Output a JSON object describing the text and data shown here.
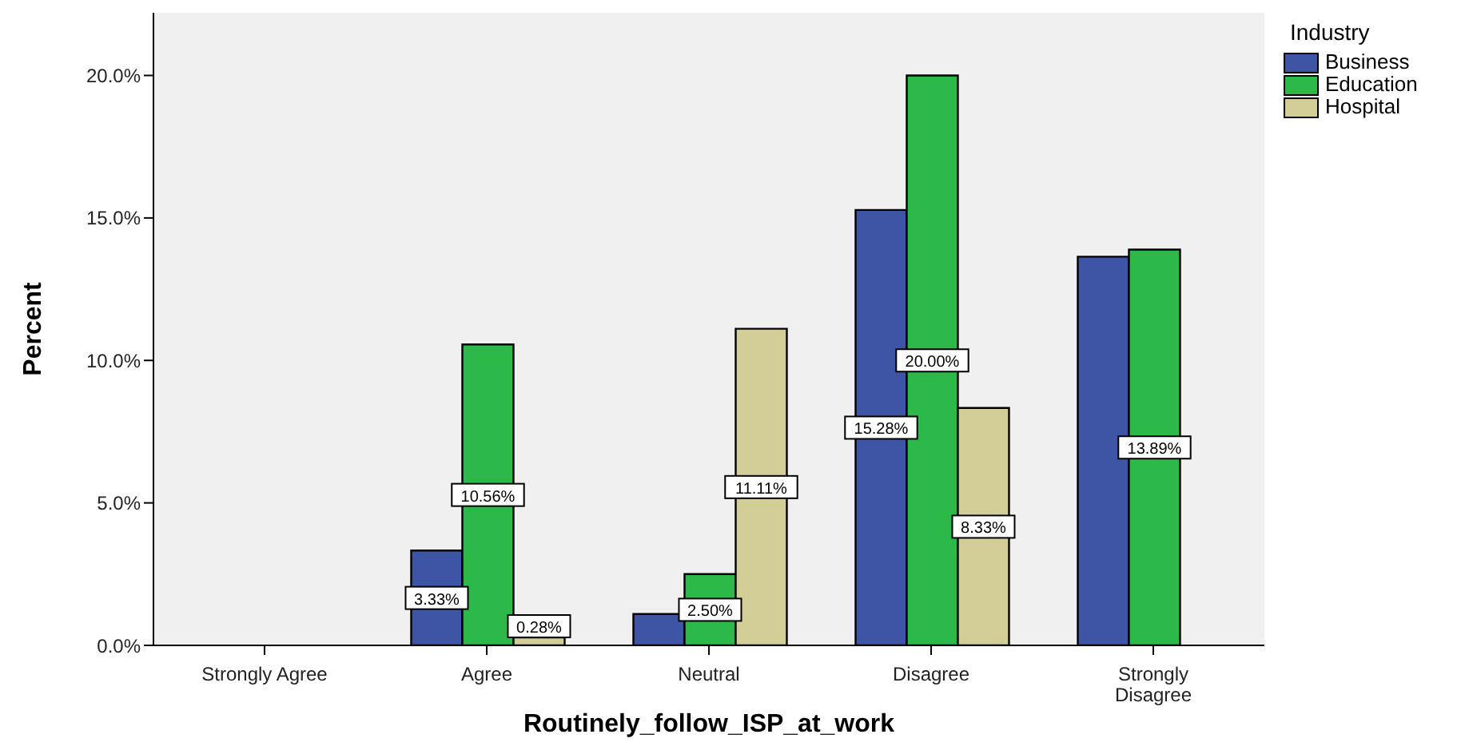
{
  "chart_data": {
    "type": "bar",
    "xlabel": "Routinely_follow_ISP_at_work",
    "ylabel": "Percent",
    "legend_title": "Industry",
    "legend": "top right",
    "grid": false,
    "categories": [
      "Strongly Agree",
      "Agree",
      "Neutral",
      "Disagree",
      "Strongly Disagree"
    ],
    "series": [
      {
        "name": "Business",
        "color": "#3e55a6",
        "values": [
          null,
          3.33,
          1.1,
          15.28,
          13.64
        ],
        "value_labels": [
          null,
          "3.33%",
          null,
          "15.28%",
          null
        ]
      },
      {
        "name": "Education",
        "color": "#2db84a",
        "values": [
          null,
          10.56,
          2.5,
          20.0,
          13.89
        ],
        "value_labels": [
          null,
          "10.56%",
          "2.50%",
          "20.00%",
          "13.89%"
        ]
      },
      {
        "name": "Hospital",
        "color": "#d3cd98",
        "values": [
          null,
          0.28,
          11.11,
          8.33,
          null
        ],
        "value_labels": [
          null,
          "0.28%",
          "11.11%",
          "8.33%",
          null
        ]
      }
    ],
    "ylim": [
      0,
      22.2
    ],
    "yticks": [
      {
        "value": 0,
        "label": "0.0%"
      },
      {
        "value": 5,
        "label": "5.0%"
      },
      {
        "value": 10,
        "label": "10.0%"
      },
      {
        "value": 15,
        "label": "15.0%"
      },
      {
        "value": 20,
        "label": "20.0%"
      }
    ]
  }
}
